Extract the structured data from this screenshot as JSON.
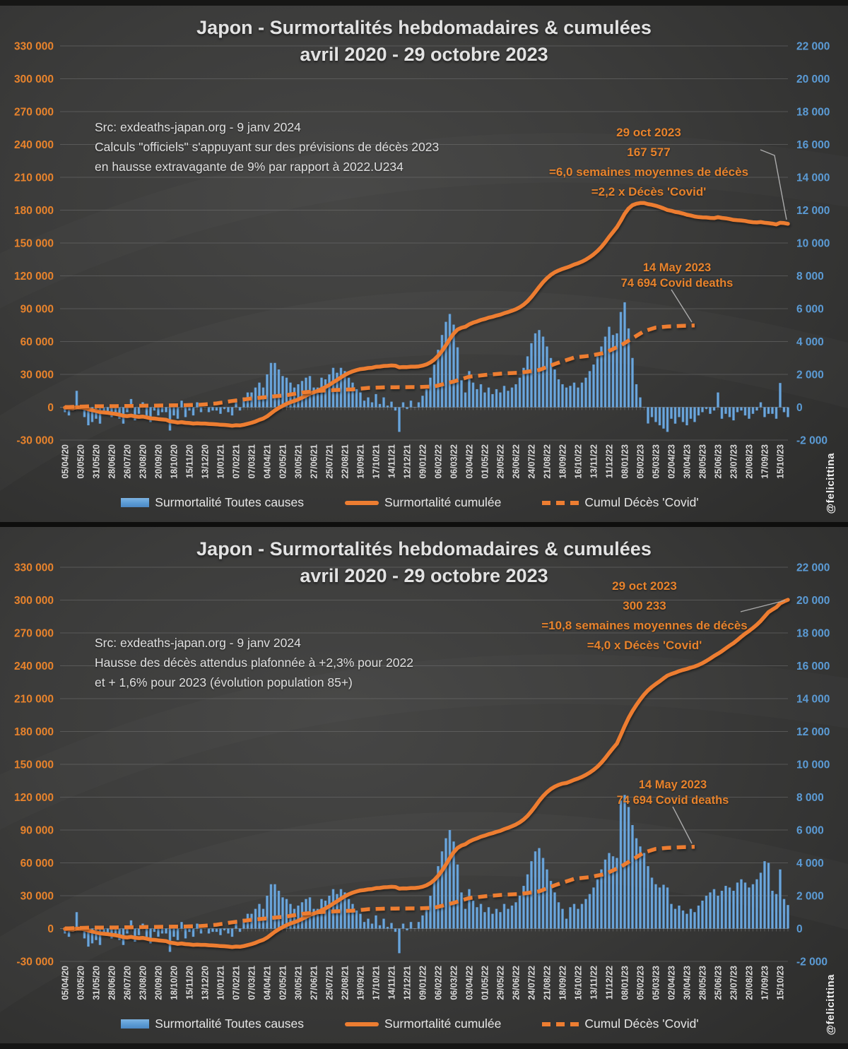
{
  "watermark": "@felicittina",
  "legend": {
    "bars_label": "Surmortalité Toutes causes",
    "line_label": "Surmortalité cumulée",
    "dashed_label": "Cumul Décès 'Covid'"
  },
  "charts": [
    {
      "title_line1": "Japon - Surmortalités hebdomadaires & cumulées",
      "title_line2": "avril 2020 - 29 octobre 2023",
      "source_lines": {
        "0": "Src: exdeaths-japan.org - 9 janv 2024",
        "1": "Calculs \"officiels\" s'appuyant sur des prévisions de décès 2023",
        "2": "en  hausse extravagante de 9% par rapport à 2022.U234"
      },
      "annotation_end": {
        "lines": {
          "0": "29 oct 2023",
          "1": "167 577",
          "2": "=6,0 semaines moyennes de décès",
          "3": "=2,2 x Décès 'Covid'"
        }
      },
      "annotation_covid": {
        "lines": {
          "0": "14 May 2023",
          "1": "74 694 Covid deaths"
        }
      }
    },
    {
      "title_line1": "Japon - Surmortalités hebdomadaires & cumulées",
      "title_line2": "avril 2020 - 29 octobre 2023",
      "source_lines": {
        "0": "Src: exdeaths-japan.org - 9 janv 2024",
        "1": "Hausse des décès attendus plafonnée à +2,3% pour 2022",
        "2": "et + 1,6% pour 2023 (évolution population 85+)"
      },
      "annotation_end": {
        "lines": {
          "0": "29 oct 2023",
          "1": "300 233",
          "2": "=10,8 semaines moyennes de décès",
          "3": "=4,0 x Décès 'Covid'"
        }
      },
      "annotation_covid": {
        "lines": {
          "0": "14 May 2023",
          "1": "74 694 Covid deaths"
        }
      }
    }
  ],
  "chart_data": [
    {
      "type": "bar",
      "title": "Japon - Surmortalités hebdomadaires & cumulées avril 2020 - 29 octobre 2023 (prévisions officielles 2023 +9%)",
      "ylim_left": [
        -30000,
        330000
      ],
      "ylim_right": [
        -2000,
        22000
      ],
      "right_axis_scale_factor": 15,
      "left_tick_labels": [
        "330 000",
        "300 000",
        "270 000",
        "240 000",
        "210 000",
        "180 000",
        "150 000",
        "120 000",
        "90 000",
        "60 000",
        "30 000",
        "0",
        "-30 000"
      ],
      "right_tick_labels": [
        "22 000",
        "20 000",
        "18 000",
        "16 000",
        "14 000",
        "12 000",
        "10 000",
        "8 000",
        "6 000",
        "4 000",
        "2 000",
        "0",
        "-2 000"
      ],
      "x_tick_labels": [
        "05/04/20",
        "03/05/20",
        "31/05/20",
        "28/06/20",
        "26/07/20",
        "23/08/20",
        "20/09/20",
        "18/10/20",
        "15/11/20",
        "13/12/20",
        "10/01/21",
        "07/02/21",
        "07/03/21",
        "04/04/21",
        "02/05/21",
        "30/05/21",
        "27/06/21",
        "25/07/21",
        "22/08/21",
        "19/09/21",
        "17/10/21",
        "14/11/21",
        "12/12/21",
        "09/01/22",
        "06/02/22",
        "06/03/22",
        "03/04/22",
        "01/05/22",
        "29/05/22",
        "26/06/22",
        "24/07/22",
        "21/08/22",
        "18/09/22",
        "16/10/22",
        "13/11/22",
        "11/12/22",
        "08/01/23",
        "05/02/23",
        "05/03/23",
        "02/04/23",
        "30/04/23",
        "28/05/23",
        "25/06/23",
        "23/07/23",
        "20/08/23",
        "17/09/23",
        "15/10/23"
      ],
      "x_label_interval_weeks": 4,
      "series": [
        {
          "name": "Surmortalité Toutes causes",
          "type": "bar",
          "axis": "right",
          "weekly_values": [
            -300,
            -500,
            -200,
            1000,
            -100,
            -600,
            -1100,
            -900,
            -700,
            -1000,
            -400,
            -300,
            -600,
            -400,
            -700,
            -1000,
            -300,
            500,
            -800,
            -400,
            300,
            -700,
            -900,
            -200,
            -500,
            -300,
            -300,
            -1420,
            -500,
            -700,
            400,
            -600,
            -200,
            -500,
            300,
            -300,
            0,
            -300,
            -200,
            -200,
            -400,
            -100,
            -300,
            -500,
            500,
            -200,
            600,
            900,
            900,
            1200,
            1500,
            1200,
            2000,
            2700,
            2700,
            2300,
            1900,
            1800,
            1500,
            1200,
            1400,
            1600,
            1800,
            1900,
            1200,
            1200,
            1800,
            1700,
            2000,
            2400,
            2100,
            2400,
            2200,
            1800,
            1500,
            1100,
            900,
            400,
            600,
            300,
            800,
            200,
            600,
            100,
            340,
            -200,
            -1500,
            300,
            -100,
            400,
            -20,
            300,
            700,
            1100,
            1800,
            2600,
            3500,
            4400,
            5200,
            5680,
            5030,
            3650,
            1640,
            900,
            2200,
            1500,
            1100,
            1400,
            900,
            1200,
            800,
            1100,
            900,
            1300,
            1000,
            1200,
            1400,
            1800,
            2400,
            3100,
            3900,
            4500,
            4700,
            4300,
            3700,
            3000,
            2300,
            1700,
            1400,
            1200,
            1300,
            1500,
            1200,
            1500,
            1800,
            2200,
            2600,
            3100,
            3700,
            4300,
            4900,
            4400,
            4500,
            5800,
            6390,
            4800,
            3000,
            1400,
            600,
            0,
            -990,
            -600,
            -900,
            -1100,
            -1300,
            -1500,
            -700,
            -1000,
            -600,
            -900,
            -1100,
            -700,
            -900,
            -500,
            -300,
            -100,
            -400,
            -200,
            900,
            -700,
            -400,
            -600,
            -800,
            -300,
            -200,
            -500,
            -700,
            -400,
            -200,
            300,
            -600,
            -400,
            -400,
            -700,
            1477,
            -300,
            -600
          ]
        },
        {
          "name": "Surmortalité cumulée",
          "type": "line",
          "axis": "left",
          "derived": "cumulative_sum_of_weekly_values",
          "end_value": 167577,
          "end_date": "29 oct 2023"
        },
        {
          "name": "Cumul Décès 'Covid'",
          "type": "dashed-line",
          "axis": "left",
          "anchor_points": [
            [
              0,
              100
            ],
            [
              4,
              600
            ],
            [
              8,
              900
            ],
            [
              13,
              980
            ],
            [
              18,
              1200
            ],
            [
              22,
              1450
            ],
            [
              26,
              1650
            ],
            [
              30,
              1800
            ],
            [
              35,
              2300
            ],
            [
              39,
              3500
            ],
            [
              43,
              5700
            ],
            [
              48,
              8000
            ],
            [
              52,
              9300
            ],
            [
              57,
              11000
            ],
            [
              61,
              13400
            ],
            [
              65,
              14900
            ],
            [
              70,
              15800
            ],
            [
              74,
              16300
            ],
            [
              78,
              17650
            ],
            [
              83,
              18250
            ],
            [
              87,
              18330
            ],
            [
              91,
              18400
            ],
            [
              95,
              19000
            ],
            [
              100,
              23500
            ],
            [
              104,
              27900
            ],
            [
              109,
              29800
            ],
            [
              113,
              30900
            ],
            [
              117,
              31500
            ],
            [
              122,
              34000
            ],
            [
              126,
              39500
            ],
            [
              131,
              45400
            ],
            [
              135,
              47000
            ],
            [
              139,
              49800
            ],
            [
              143,
              56500
            ],
            [
              146,
              63000
            ],
            [
              149,
              69500
            ],
            [
              152,
              72800
            ],
            [
              155,
              73700
            ],
            [
              158,
              74200
            ],
            [
              162,
              74694
            ]
          ],
          "end_value": 74694,
          "end_date": "14 May 2023"
        }
      ]
    },
    {
      "type": "bar",
      "title": "Japon - Surmortalités hebdomadaires & cumulées avril 2020 - 29 octobre 2023 (hausse attendue plafonnée +2,3% 2022 / +1,6% 2023)",
      "ylim_left": [
        -30000,
        330000
      ],
      "ylim_right": [
        -2000,
        22000
      ],
      "right_axis_scale_factor": 15,
      "left_tick_labels": [
        "330 000",
        "300 000",
        "270 000",
        "240 000",
        "210 000",
        "180 000",
        "150 000",
        "120 000",
        "90 000",
        "60 000",
        "30 000",
        "0",
        "-30 000"
      ],
      "right_tick_labels": [
        "22 000",
        "20 000",
        "18 000",
        "16 000",
        "14 000",
        "12 000",
        "10 000",
        "8 000",
        "6 000",
        "4 000",
        "2 000",
        "0",
        "-2 000"
      ],
      "x_tick_labels": [
        "05/04/20",
        "03/05/20",
        "31/05/20",
        "28/06/20",
        "26/07/20",
        "23/08/20",
        "20/09/20",
        "18/10/20",
        "15/11/20",
        "13/12/20",
        "10/01/21",
        "07/02/21",
        "07/03/21",
        "04/04/21",
        "02/05/21",
        "30/05/21",
        "27/06/21",
        "25/07/21",
        "22/08/21",
        "19/09/21",
        "17/10/21",
        "14/11/21",
        "12/12/21",
        "09/01/22",
        "06/02/22",
        "06/03/22",
        "03/04/22",
        "01/05/22",
        "29/05/22",
        "26/06/22",
        "24/07/22",
        "21/08/22",
        "18/09/22",
        "16/10/22",
        "13/11/22",
        "11/12/22",
        "08/01/23",
        "05/02/23",
        "05/03/23",
        "02/04/23",
        "30/04/23",
        "28/05/23",
        "25/06/23",
        "23/07/23",
        "20/08/23",
        "17/09/23",
        "15/10/23"
      ],
      "x_label_interval_weeks": 4,
      "series": [
        {
          "name": "Surmortalité Toutes causes",
          "type": "bar",
          "axis": "right",
          "weekly_values": [
            -300,
            -500,
            -200,
            1000,
            -100,
            -600,
            -1100,
            -900,
            -700,
            -1000,
            -400,
            -300,
            -600,
            -400,
            -700,
            -1000,
            -300,
            500,
            -800,
            -400,
            300,
            -700,
            -900,
            -200,
            -500,
            -300,
            -300,
            -1420,
            -500,
            -700,
            400,
            -600,
            -200,
            -500,
            300,
            -300,
            0,
            -300,
            -200,
            -200,
            -400,
            -100,
            -300,
            -500,
            500,
            -200,
            600,
            900,
            900,
            1200,
            1500,
            1200,
            2000,
            2700,
            2700,
            2300,
            1900,
            1800,
            1500,
            1200,
            1400,
            1600,
            1800,
            1900,
            1200,
            1200,
            1800,
            1700,
            2000,
            2400,
            2100,
            2400,
            2200,
            1800,
            1500,
            1100,
            900,
            400,
            600,
            300,
            800,
            200,
            600,
            100,
            340,
            -200,
            -1500,
            300,
            -100,
            400,
            -20,
            400,
            800,
            1300,
            2000,
            2900,
            3800,
            4700,
            5500,
            6000,
            5300,
            3900,
            2200,
            1200,
            2400,
            1700,
            1300,
            1500,
            1000,
            1300,
            900,
            1200,
            1000,
            1500,
            1200,
            1400,
            1600,
            2000,
            2600,
            3300,
            4100,
            4700,
            4900,
            4300,
            3600,
            2900,
            2200,
            1600,
            1200,
            600,
            1300,
            1500,
            1200,
            1500,
            1800,
            2100,
            2500,
            3000,
            3600,
            4200,
            4600,
            4400,
            4300,
            7800,
            8133,
            7400,
            6300,
            5500,
            5000,
            4600,
            3800,
            3100,
            2700,
            2500,
            2667,
            2500,
            1500,
            1200,
            1400,
            1100,
            900,
            1200,
            1000,
            1400,
            1700,
            2000,
            2200,
            2400,
            2000,
            2300,
            2600,
            2500,
            2300,
            2800,
            3000,
            2800,
            2500,
            2700,
            3000,
            3400,
            4100,
            4000,
            2300,
            2100,
            3600,
            1800,
            1433
          ]
        },
        {
          "name": "Surmortalité cumulée",
          "type": "line",
          "axis": "left",
          "derived": "cumulative_sum_of_weekly_values",
          "end_value": 300233,
          "end_date": "29 oct 2023"
        },
        {
          "name": "Cumul Décès 'Covid'",
          "type": "dashed-line",
          "axis": "left",
          "anchor_points": [
            [
              0,
              100
            ],
            [
              4,
              600
            ],
            [
              8,
              900
            ],
            [
              13,
              980
            ],
            [
              18,
              1200
            ],
            [
              22,
              1450
            ],
            [
              26,
              1650
            ],
            [
              30,
              1800
            ],
            [
              35,
              2300
            ],
            [
              39,
              3500
            ],
            [
              43,
              5700
            ],
            [
              48,
              8000
            ],
            [
              52,
              9300
            ],
            [
              57,
              11000
            ],
            [
              61,
              13400
            ],
            [
              65,
              14900
            ],
            [
              70,
              15800
            ],
            [
              74,
              16300
            ],
            [
              78,
              17650
            ],
            [
              83,
              18250
            ],
            [
              87,
              18330
            ],
            [
              91,
              18400
            ],
            [
              95,
              19000
            ],
            [
              100,
              23500
            ],
            [
              104,
              27900
            ],
            [
              109,
              29800
            ],
            [
              113,
              30900
            ],
            [
              117,
              31500
            ],
            [
              122,
              34000
            ],
            [
              126,
              39500
            ],
            [
              131,
              45400
            ],
            [
              135,
              47000
            ],
            [
              139,
              49800
            ],
            [
              143,
              56500
            ],
            [
              146,
              63000
            ],
            [
              149,
              69500
            ],
            [
              152,
              72800
            ],
            [
              155,
              73700
            ],
            [
              158,
              74200
            ],
            [
              162,
              74694
            ]
          ],
          "end_value": 74694,
          "end_date": "14 May 2023"
        }
      ]
    }
  ],
  "colors": {
    "bar_blue": "#5B9BD5",
    "line_orange": "#ED7D31",
    "left_axis_labels": "#E8832C",
    "right_axis_labels": "#5B9BD5",
    "x_axis_labels": "#D9D9D9",
    "title_gray": "#E3E3E3"
  }
}
